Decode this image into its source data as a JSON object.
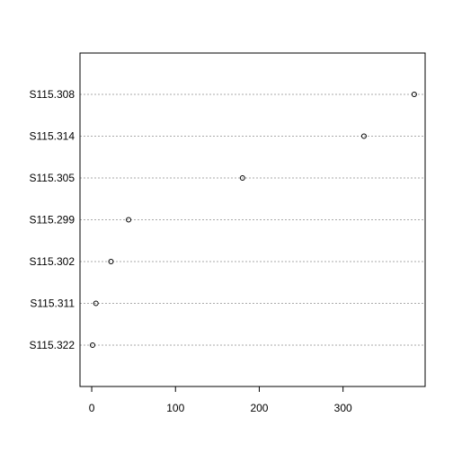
{
  "chart_data": {
    "type": "scatter",
    "title": "",
    "xlabel": "",
    "ylabel": "",
    "xlim": [
      -14,
      398
    ],
    "x_ticks": [
      0,
      100,
      200,
      300
    ],
    "grid": "horizontal dotted",
    "categories": [
      "S115.308",
      "S115.314",
      "S115.305",
      "S115.299",
      "S115.302",
      "S115.311",
      "S115.322"
    ],
    "values": [
      385,
      325,
      180,
      44,
      23,
      5,
      1
    ]
  }
}
